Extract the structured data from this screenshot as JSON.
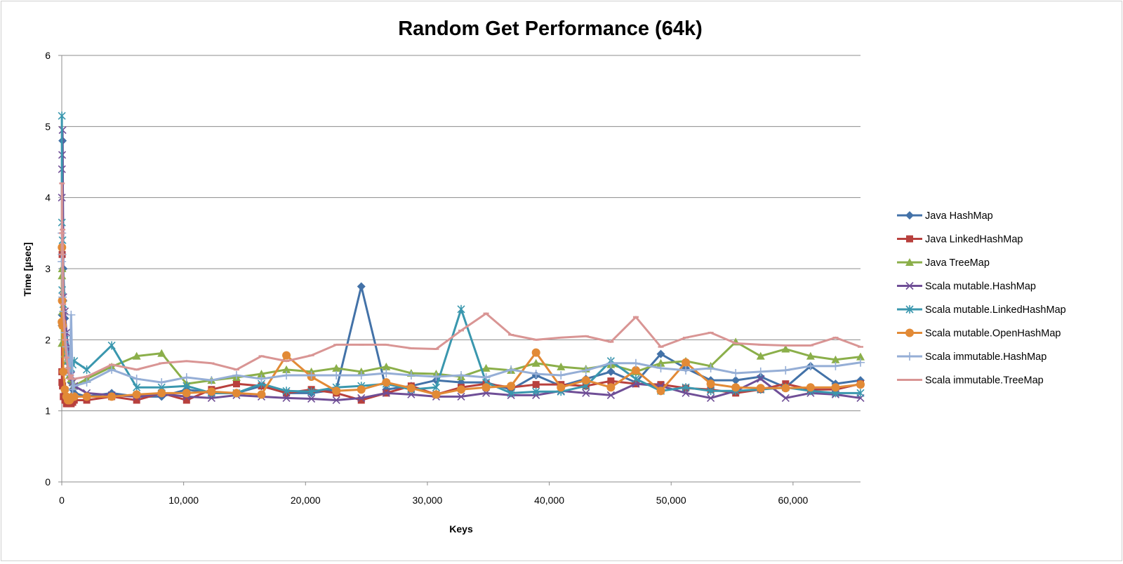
{
  "chart_data": {
    "type": "line",
    "title": "Random Get Performance (64k)",
    "xlabel": "Keys",
    "ylabel": "Time [µsec]",
    "xlim": [
      0,
      65536
    ],
    "ylim": [
      0,
      6
    ],
    "xticks": [
      0,
      10000,
      20000,
      30000,
      40000,
      50000,
      60000
    ],
    "xtick_labels": [
      "0",
      "10,000",
      "20,000",
      "30,000",
      "40,000",
      "50,000",
      "60,000"
    ],
    "yticks": [
      0,
      1,
      2,
      3,
      4,
      5,
      6
    ],
    "ytick_labels": [
      "0",
      "1",
      "2",
      "3",
      "4",
      "5",
      "6"
    ],
    "grid": "horizontal",
    "legend_position": "right",
    "series": [
      {
        "name": "Java HashMap",
        "color": "#4372A8",
        "marker": "diamond",
        "x": [
          8,
          16,
          32,
          64,
          128,
          256,
          384,
          512,
          640,
          768,
          896,
          1024,
          2048,
          4096,
          6144,
          8192,
          10240,
          12288,
          14336,
          16384,
          18432,
          20480,
          22528,
          24576,
          26624,
          28672,
          30720,
          32768,
          34816,
          36864,
          38912,
          40960,
          43008,
          45056,
          47104,
          49152,
          51200,
          53248,
          55296,
          57344,
          59392,
          61440,
          63488,
          65536
        ],
        "y": [
          2.2,
          2.35,
          3.2,
          4.8,
          3.0,
          2.3,
          1.9,
          1.7,
          1.55,
          1.4,
          1.3,
          1.25,
          1.2,
          1.25,
          1.2,
          1.2,
          1.3,
          1.25,
          1.25,
          1.35,
          1.25,
          1.25,
          1.3,
          2.75,
          1.3,
          1.35,
          1.43,
          1.4,
          1.4,
          1.3,
          1.5,
          1.35,
          1.45,
          1.55,
          1.4,
          1.8,
          1.6,
          1.43,
          1.43,
          1.48,
          1.33,
          1.63,
          1.38,
          1.43
        ]
      },
      {
        "name": "Java LinkedHashMap",
        "color": "#B8403D",
        "marker": "square",
        "x": [
          8,
          16,
          32,
          64,
          128,
          256,
          384,
          512,
          640,
          768,
          896,
          1024,
          2048,
          4096,
          6144,
          8192,
          10240,
          12288,
          14336,
          16384,
          18432,
          20480,
          22528,
          24576,
          26624,
          28672,
          30720,
          32768,
          34816,
          36864,
          38912,
          40960,
          43008,
          45056,
          47104,
          49152,
          51200,
          53248,
          55296,
          57344,
          59392,
          61440,
          63488,
          65536
        ],
        "y": [
          1.55,
          1.4,
          3.2,
          1.35,
          1.2,
          1.15,
          1.1,
          1.1,
          1.12,
          1.1,
          1.12,
          1.15,
          1.15,
          1.2,
          1.15,
          1.25,
          1.15,
          1.3,
          1.38,
          1.35,
          1.25,
          1.3,
          1.25,
          1.15,
          1.25,
          1.35,
          1.23,
          1.33,
          1.38,
          1.33,
          1.37,
          1.37,
          1.35,
          1.42,
          1.38,
          1.37,
          1.32,
          1.3,
          1.25,
          1.3,
          1.38,
          1.3,
          1.3,
          1.38
        ]
      },
      {
        "name": "Java TreeMap",
        "color": "#8BAF4A",
        "marker": "triangle",
        "x": [
          8,
          16,
          32,
          64,
          128,
          256,
          384,
          512,
          640,
          768,
          896,
          1024,
          2048,
          4096,
          6144,
          8192,
          10240,
          12288,
          14336,
          16384,
          18432,
          20480,
          22528,
          24576,
          26624,
          28672,
          30720,
          32768,
          34816,
          36864,
          38912,
          40960,
          43008,
          45056,
          47104,
          49152,
          51200,
          53248,
          55296,
          57344,
          59392,
          61440,
          63488,
          65536
        ],
        "y": [
          1.95,
          2.9,
          3.0,
          2.4,
          2.2,
          1.8,
          1.7,
          1.6,
          1.5,
          1.45,
          1.4,
          1.35,
          1.45,
          1.62,
          1.77,
          1.81,
          1.38,
          1.43,
          1.47,
          1.52,
          1.58,
          1.55,
          1.6,
          1.55,
          1.62,
          1.53,
          1.52,
          1.48,
          1.6,
          1.57,
          1.67,
          1.62,
          1.59,
          1.65,
          1.55,
          1.67,
          1.7,
          1.63,
          1.97,
          1.77,
          1.87,
          1.77,
          1.72,
          1.76
        ]
      },
      {
        "name": "Scala mutable.HashMap",
        "color": "#6F4E96",
        "marker": "x",
        "x": [
          8,
          16,
          32,
          64,
          128,
          256,
          384,
          512,
          640,
          768,
          896,
          1024,
          2048,
          4096,
          6144,
          8192,
          10240,
          12288,
          14336,
          16384,
          18432,
          20480,
          22528,
          24576,
          26624,
          28672,
          30720,
          32768,
          34816,
          36864,
          38912,
          40960,
          43008,
          45056,
          47104,
          49152,
          51200,
          53248,
          55296,
          57344,
          59392,
          61440,
          63488,
          65536
        ],
        "y": [
          4.0,
          4.4,
          4.6,
          4.95,
          2.6,
          2.4,
          2.1,
          1.9,
          1.7,
          1.5,
          1.4,
          1.35,
          1.25,
          1.22,
          1.2,
          1.24,
          1.2,
          1.18,
          1.22,
          1.2,
          1.18,
          1.17,
          1.15,
          1.18,
          1.25,
          1.23,
          1.2,
          1.2,
          1.25,
          1.22,
          1.22,
          1.28,
          1.25,
          1.22,
          1.38,
          1.35,
          1.25,
          1.18,
          1.28,
          1.45,
          1.18,
          1.25,
          1.23,
          1.18
        ]
      },
      {
        "name": "Scala mutable.LinkedHashMap",
        "color": "#3A97AE",
        "marker": "star",
        "x": [
          8,
          16,
          32,
          64,
          128,
          256,
          384,
          512,
          640,
          768,
          896,
          1024,
          2048,
          4096,
          6144,
          8192,
          10240,
          12288,
          14336,
          16384,
          18432,
          20480,
          22528,
          24576,
          26624,
          28672,
          30720,
          32768,
          34816,
          36864,
          38912,
          40960,
          43008,
          45056,
          47104,
          49152,
          51200,
          53248,
          55296,
          57344,
          59392,
          61440,
          63488,
          65536
        ],
        "y": [
          5.15,
          3.65,
          2.7,
          3.4,
          2.5,
          2.0,
          1.8,
          1.7,
          1.65,
          1.6,
          1.65,
          1.7,
          1.58,
          1.92,
          1.33,
          1.33,
          1.35,
          1.25,
          1.25,
          1.38,
          1.28,
          1.27,
          1.33,
          1.35,
          1.38,
          1.3,
          1.33,
          2.43,
          1.4,
          1.25,
          1.27,
          1.27,
          1.35,
          1.7,
          1.45,
          1.28,
          1.33,
          1.28,
          1.28,
          1.3,
          1.33,
          1.28,
          1.25,
          1.25
        ]
      },
      {
        "name": "Scala mutable.OpenHashMap",
        "color": "#E28A36",
        "marker": "circle",
        "x": [
          8,
          16,
          32,
          64,
          128,
          256,
          384,
          512,
          640,
          768,
          896,
          1024,
          2048,
          4096,
          6144,
          8192,
          10240,
          12288,
          14336,
          16384,
          18432,
          20480,
          22528,
          24576,
          26624,
          28672,
          30720,
          32768,
          34816,
          36864,
          38912,
          40960,
          43008,
          45056,
          47104,
          49152,
          51200,
          53248,
          55296,
          57344,
          59392,
          61440,
          63488,
          65536
        ],
        "y": [
          2.25,
          3.3,
          2.55,
          2.2,
          1.55,
          1.3,
          1.2,
          1.15,
          1.15,
          1.18,
          1.2,
          1.2,
          1.2,
          1.2,
          1.23,
          1.25,
          1.25,
          1.27,
          1.25,
          1.23,
          1.78,
          1.48,
          1.28,
          1.3,
          1.4,
          1.32,
          1.23,
          1.3,
          1.33,
          1.35,
          1.82,
          1.33,
          1.43,
          1.33,
          1.57,
          1.28,
          1.68,
          1.38,
          1.33,
          1.32,
          1.32,
          1.33,
          1.33,
          1.37
        ]
      },
      {
        "name": "Scala immutable.HashMap",
        "color": "#95AED6",
        "marker": "plus",
        "x": [
          8,
          16,
          32,
          64,
          128,
          256,
          384,
          512,
          640,
          768,
          896,
          1024,
          2048,
          4096,
          6144,
          8192,
          10240,
          12288,
          14336,
          16384,
          18432,
          20480,
          22528,
          24576,
          26624,
          28672,
          30720,
          32768,
          34816,
          36864,
          38912,
          40960,
          43008,
          45056,
          47104,
          49152,
          51200,
          53248,
          55296,
          57344,
          59392,
          61440,
          63488,
          65536
        ],
        "y": [
          3.1,
          3.5,
          3.2,
          2.6,
          2.4,
          2.1,
          1.9,
          1.7,
          1.5,
          2.35,
          1.3,
          1.35,
          1.4,
          1.58,
          1.45,
          1.4,
          1.47,
          1.43,
          1.5,
          1.45,
          1.5,
          1.5,
          1.5,
          1.5,
          1.53,
          1.5,
          1.48,
          1.5,
          1.47,
          1.58,
          1.52,
          1.5,
          1.57,
          1.67,
          1.67,
          1.6,
          1.57,
          1.6,
          1.53,
          1.55,
          1.57,
          1.63,
          1.63,
          1.68
        ]
      },
      {
        "name": "Scala immutable.TreeMap",
        "color": "#D99594",
        "marker": "dash",
        "x": [
          8,
          16,
          32,
          64,
          128,
          256,
          384,
          512,
          640,
          768,
          896,
          1024,
          2048,
          4096,
          6144,
          8192,
          10240,
          12288,
          14336,
          16384,
          18432,
          20480,
          22528,
          24576,
          26624,
          28672,
          30720,
          32768,
          34816,
          36864,
          38912,
          40960,
          43008,
          45056,
          47104,
          49152,
          51200,
          53248,
          55296,
          57344,
          59392,
          61440,
          63488,
          65536
        ],
        "y": [
          3.5,
          4.2,
          3.2,
          3.55,
          2.5,
          2.0,
          1.75,
          1.6,
          1.45,
          1.5,
          1.45,
          1.45,
          1.48,
          1.65,
          1.58,
          1.67,
          1.7,
          1.67,
          1.58,
          1.77,
          1.7,
          1.78,
          1.93,
          1.93,
          1.93,
          1.88,
          1.87,
          2.13,
          2.37,
          2.07,
          2.0,
          2.03,
          2.05,
          1.97,
          2.32,
          1.9,
          2.03,
          2.1,
          1.95,
          1.93,
          1.92,
          1.92,
          2.03,
          1.9
        ]
      }
    ]
  }
}
